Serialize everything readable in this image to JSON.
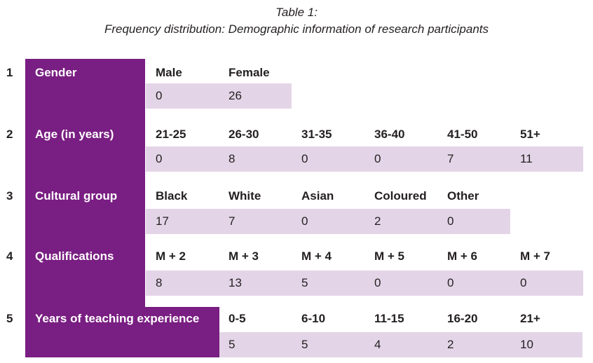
{
  "caption": {
    "title": "Table 1:",
    "subtitle": "Frequency distribution: Demographic information of research participants"
  },
  "colors": {
    "purple": "#791e82",
    "band": "#e3d5e7",
    "text": "#231f20",
    "label_text": "#ffffff"
  },
  "rows": [
    {
      "number": "1",
      "label": "Gender",
      "columns": [
        "Male",
        "Female"
      ],
      "values": [
        "0",
        "26"
      ]
    },
    {
      "number": "2",
      "label": "Age (in years)",
      "columns": [
        "21-25",
        "26-30",
        "31-35",
        "36-40",
        "41-50",
        "51+"
      ],
      "values": [
        "0",
        "8",
        "0",
        "0",
        "7",
        "11"
      ]
    },
    {
      "number": "3",
      "label": "Cultural group",
      "columns": [
        "Black",
        "White",
        "Asian",
        "Coloured",
        "Other"
      ],
      "values": [
        "17",
        "7",
        "0",
        "2",
        "0"
      ]
    },
    {
      "number": "4",
      "label": "Qualifications",
      "columns": [
        "M + 2",
        "M + 3",
        "M + 4",
        "M + 5",
        "M + 6",
        "M + 7"
      ],
      "values": [
        "8",
        "13",
        "5",
        "0",
        "0",
        "0"
      ]
    },
    {
      "number": "5",
      "label": "Years of teaching experience",
      "columns": [
        "0-5",
        "6-10",
        "11-15",
        "16-20",
        "21+"
      ],
      "values": [
        "5",
        "5",
        "4",
        "2",
        "10"
      ]
    }
  ]
}
